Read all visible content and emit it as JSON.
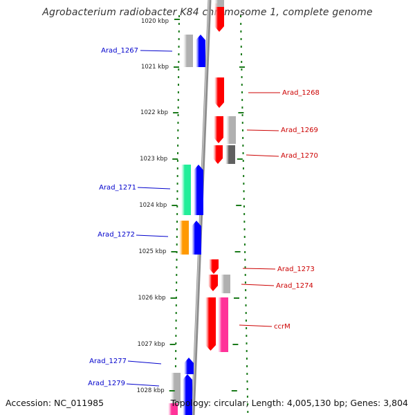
{
  "title": "Agrobacterium radiobacter K84 chromosome 1, complete genome",
  "footer": {
    "accession": "Accession: NC_011985",
    "summary": "Topology: circular; Length: 4,005,130 bp; Genes: 3,804"
  },
  "scale": {
    "first_label": "1020 kbp",
    "labels": [
      "1021 kbp",
      "1022 kbp",
      "1023 kbp",
      "1024 kbp",
      "1025 kbp",
      "1026 kbp",
      "1027 kbp",
      "1028 kbp"
    ]
  },
  "genes": {
    "forward": [
      {
        "label": "Arad_1267",
        "color": "#0000cc"
      },
      {
        "label": "Arad_1271",
        "color": "#0000cc"
      },
      {
        "label": "Arad_1272",
        "color": "#0000cc"
      },
      {
        "label": "Arad_1277",
        "color": "#0000cc"
      },
      {
        "label": "Arad_1279",
        "color": "#0000cc"
      }
    ],
    "reverse": [
      {
        "label": "Arad_1268",
        "color": "#cc0000"
      },
      {
        "label": "Arad_1269",
        "color": "#cc0000"
      },
      {
        "label": "Arad_1270",
        "color": "#cc0000"
      },
      {
        "label": "Arad_1273",
        "color": "#cc0000"
      },
      {
        "label": "Arad_1274",
        "color": "#cc0000"
      },
      {
        "label": "ccrM",
        "color": "#cc0000"
      }
    ]
  },
  "colors": {
    "backbone": "#8c8c8c",
    "ticks": "#1a7a1a",
    "cds_forward": "#0000ff",
    "cds_reverse": "#ff0000",
    "feature_gray": "#b0b0b0",
    "feature_dark_gray": "#606060",
    "feature_green": "#22ee99",
    "feature_orange": "#ff9900",
    "feature_pink": "#ff3399"
  }
}
